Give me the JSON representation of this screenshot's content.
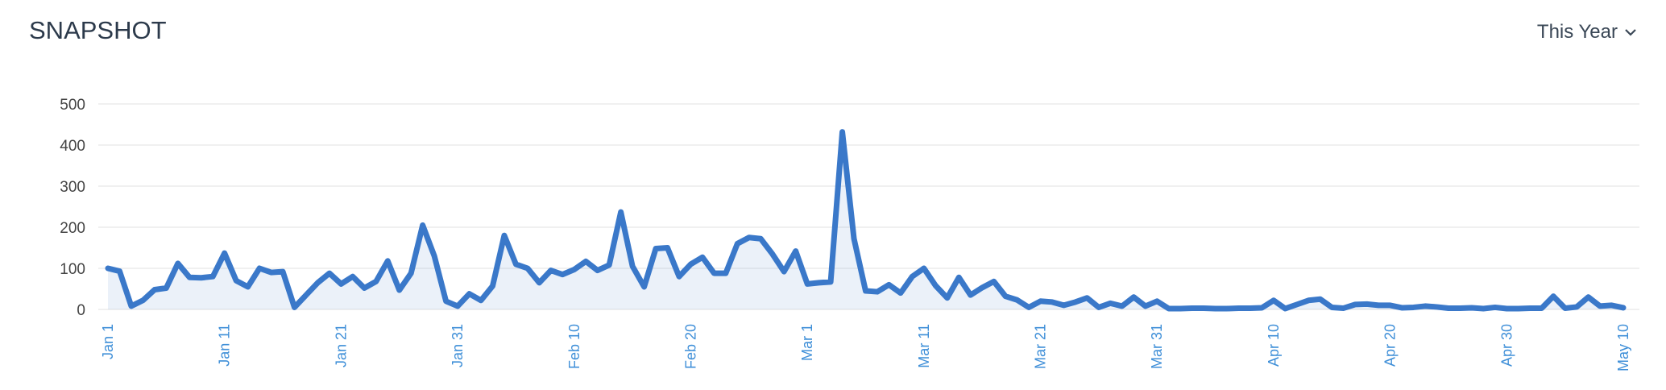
{
  "title": "SNAPSHOT",
  "range_selector": "This Year",
  "chart_data": {
    "type": "line",
    "categories": [
      "Jan 1",
      null,
      null,
      null,
      null,
      null,
      null,
      null,
      null,
      null,
      "Jan 11",
      null,
      null,
      null,
      null,
      null,
      null,
      null,
      null,
      null,
      "Jan 21",
      null,
      null,
      null,
      null,
      null,
      null,
      null,
      null,
      null,
      "Jan 31",
      null,
      null,
      null,
      null,
      null,
      null,
      null,
      null,
      null,
      "Feb 10",
      null,
      null,
      null,
      null,
      null,
      null,
      null,
      null,
      null,
      "Feb 20",
      null,
      null,
      null,
      null,
      null,
      null,
      null,
      null,
      null,
      "Mar 1",
      null,
      null,
      null,
      null,
      null,
      null,
      null,
      null,
      null,
      "Mar 11",
      null,
      null,
      null,
      null,
      null,
      null,
      null,
      null,
      null,
      "Mar 21",
      null,
      null,
      null,
      null,
      null,
      null,
      null,
      null,
      null,
      "Mar 31",
      null,
      null,
      null,
      null,
      null,
      null,
      null,
      null,
      null,
      "Apr 10",
      null,
      null,
      null,
      null,
      null,
      null,
      null,
      null,
      null,
      "Apr 20",
      null,
      null,
      null,
      null,
      null,
      null,
      null,
      null,
      null,
      "Apr 30",
      null,
      null,
      null,
      null,
      null,
      null,
      null,
      null,
      null,
      "May 10"
    ],
    "values": [
      100,
      93,
      8,
      22,
      48,
      52,
      112,
      78,
      77,
      80,
      137,
      70,
      55,
      100,
      90,
      92,
      5,
      35,
      65,
      88,
      62,
      80,
      52,
      68,
      118,
      47,
      88,
      205,
      130,
      20,
      8,
      38,
      22,
      57,
      180,
      110,
      100,
      65,
      95,
      85,
      97,
      117,
      95,
      108,
      237,
      105,
      55,
      148,
      150,
      80,
      110,
      127,
      88,
      88,
      160,
      175,
      172,
      135,
      92,
      142,
      62,
      65,
      67,
      432,
      172,
      45,
      43,
      60,
      40,
      80,
      100,
      58,
      28,
      78,
      35,
      53,
      68,
      32,
      23,
      5,
      20,
      18,
      10,
      18,
      28,
      5,
      15,
      8,
      30,
      8,
      20,
      2,
      2,
      3,
      3,
      2,
      2,
      3,
      3,
      4,
      22,
      2,
      12,
      22,
      25,
      5,
      3,
      12,
      13,
      10,
      10,
      4,
      5,
      8,
      6,
      3,
      3,
      4,
      2,
      5,
      2,
      2,
      3,
      3,
      32,
      3,
      6,
      30,
      8,
      10,
      4
    ],
    "color": "#3a78c9",
    "ylim": [
      0,
      500
    ],
    "yticks": [
      0,
      100,
      200,
      300,
      400,
      500
    ],
    "grid": true
  }
}
